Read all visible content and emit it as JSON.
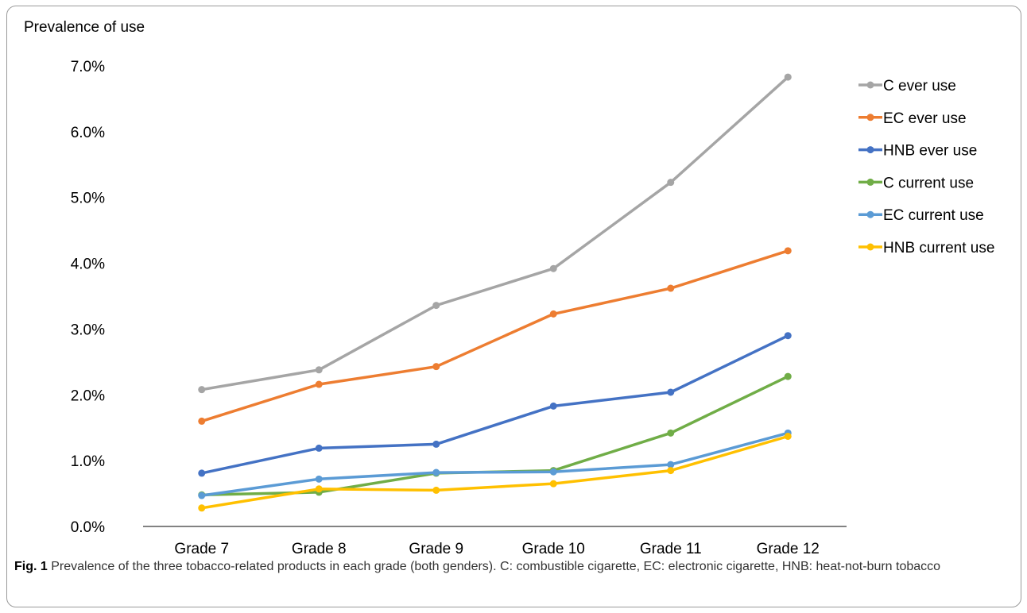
{
  "chart_data": {
    "type": "line",
    "ylabel": "Prevalence of use",
    "xlabel": "",
    "categories": [
      "Grade 7",
      "Grade 8",
      "Grade 9",
      "Grade 10",
      "Grade 11",
      "Grade 12"
    ],
    "ylim": [
      0,
      7
    ],
    "y_ticks": [
      "0.0%",
      "1.0%",
      "2.0%",
      "3.0%",
      "4.0%",
      "5.0%",
      "6.0%",
      "7.0%"
    ],
    "grid": false,
    "legend_position": "right",
    "series": [
      {
        "name": "C ever use",
        "color": "#a5a5a5",
        "values": [
          2.08,
          2.38,
          3.36,
          3.92,
          5.23,
          6.83
        ]
      },
      {
        "name": "EC ever use",
        "color": "#ed7d31",
        "values": [
          1.6,
          2.16,
          2.43,
          3.23,
          3.62,
          4.19
        ]
      },
      {
        "name": "HNB ever use",
        "color": "#4472c4",
        "values": [
          0.81,
          1.19,
          1.25,
          1.83,
          2.04,
          2.9
        ]
      },
      {
        "name": "C current use",
        "color": "#70ad47",
        "values": [
          0.48,
          0.52,
          0.81,
          0.85,
          1.42,
          2.28
        ]
      },
      {
        "name": "EC current use",
        "color": "#5b9bd5",
        "values": [
          0.47,
          0.72,
          0.82,
          0.83,
          0.94,
          1.42
        ]
      },
      {
        "name": "HNB current use",
        "color": "#ffc000",
        "values": [
          0.28,
          0.57,
          0.55,
          0.65,
          0.85,
          1.37
        ]
      }
    ]
  },
  "caption": {
    "label": "Fig. 1",
    "text": "Prevalence of the three tobacco-related products in each grade (both genders). C: combustible cigarette, EC: electronic cigarette, HNB: heat-not-burn tobacco"
  }
}
